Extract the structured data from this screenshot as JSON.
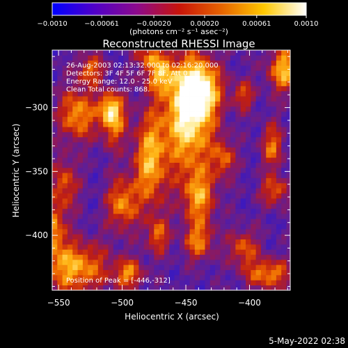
{
  "colorbar": {
    "ticks": [
      "-0.0010",
      "-0.00061",
      "-0.00020",
      "0.00020",
      "0.00061",
      "0.0010"
    ],
    "tick_values": [
      -0.001,
      -0.00061,
      -0.0002,
      0.0002,
      0.00061,
      0.001
    ],
    "units_label": "(photons cm⁻² s⁻¹ asec⁻²)",
    "colors": [
      "#0000ff",
      "#5000c8",
      "#8c0a8c",
      "#c8140a",
      "#e66400",
      "#ffc800",
      "#ffffff"
    ]
  },
  "chart_data": {
    "type": "heatmap",
    "title": "Reconstructed RHESSI Image",
    "xlabel": "Heliocentric X (arcsec)",
    "ylabel": "Heliocentric Y (arcsec)",
    "xlim": [
      -555,
      -368
    ],
    "ylim": [
      -443,
      -255
    ],
    "xticks": [
      -550,
      -500,
      -450,
      -400
    ],
    "xtick_labels": [
      "−550",
      "−500",
      "−450",
      "−400"
    ],
    "yticks": [
      -300,
      -350,
      -400
    ],
    "ytick_labels": [
      "−300",
      "−350",
      "−400"
    ],
    "annotations": [
      "26-Aug-2003 02:13:32.000 to 02:16:20.000",
      "Detectors: 3F 4F 5F 6F 7F 8F, Att 0",
      "Energy Range: 12.0 - 25.0 keV",
      "Clean     Total counts: 868."
    ],
    "peak_label": "Position of Peak = [-446,-312]",
    "peak": [
      -446,
      -312
    ]
  },
  "footer": {
    "timestamp": "5-May-2022 02:38"
  }
}
